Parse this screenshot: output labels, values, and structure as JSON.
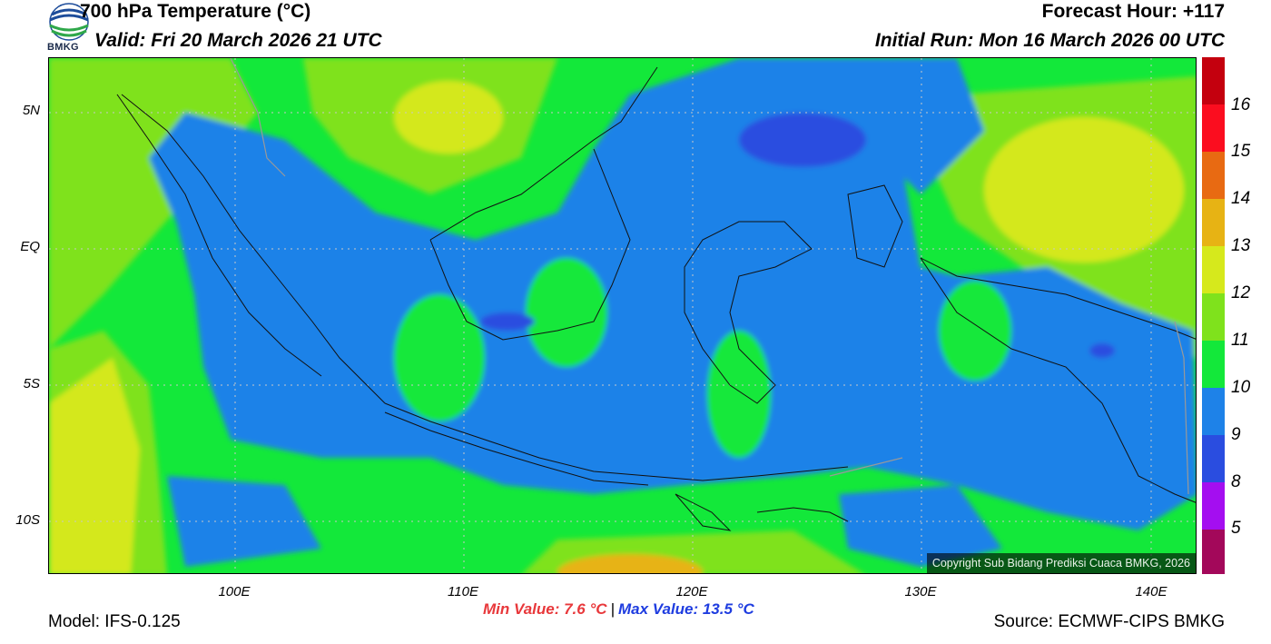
{
  "header": {
    "title": "700 hPa Temperature (°C)",
    "valid": "Valid: Fri 20 March 2026 21 UTC",
    "forecast_hour": "Forecast Hour: +117",
    "initial_run": "Initial Run: Mon 16 March 2026 00 UTC",
    "logo_text": "BMKG"
  },
  "map": {
    "lat_labels": [
      "5N",
      "EQ",
      "5S",
      "10S"
    ],
    "lon_labels": [
      "100E",
      "110E",
      "120E",
      "130E",
      "140E"
    ],
    "copyright": "Copyright Sub Bidang Prediksi Cuaca BMKG, 2026",
    "colors": {
      "t9_10": "#1e82e8",
      "t10_11": "#13e83a",
      "t11_12": "#7fe21c",
      "t12_13": "#d4e81c",
      "t8_9": "#2a4de0"
    }
  },
  "colorbar": {
    "labels": [
      "16",
      "15",
      "14",
      "13",
      "12",
      "11",
      "10",
      "9",
      "8",
      "5"
    ],
    "colors": [
      "#c4000e",
      "#e30d16",
      "#fb0d1f",
      "#e86a12",
      "#e7b314",
      "#d6e91c",
      "#7fe21c",
      "#13e83a",
      "#1e82e8",
      "#2a4de0",
      "#a40ef0",
      "#a3085a"
    ]
  },
  "footer": {
    "model": "Model: IFS-0.125",
    "min_value": "Min Value: 7.6 °C",
    "max_value": "Max Value: 13.5 °C",
    "separator": "|",
    "source": "Source: ECMWF-CIPS BMKG"
  }
}
